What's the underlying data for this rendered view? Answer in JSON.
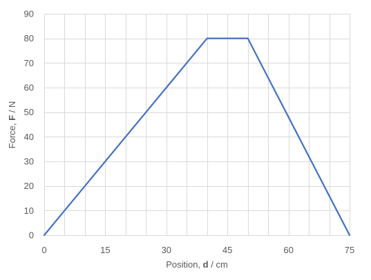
{
  "chart_data": {
    "type": "line",
    "title": "",
    "xlabel": {
      "prefix": "Position, ",
      "symbol": "d",
      "suffix": " / cm"
    },
    "ylabel": {
      "prefix": "Force, ",
      "symbol": "F",
      "suffix": " / N"
    },
    "xlim": [
      0,
      75
    ],
    "ylim": [
      0,
      90
    ],
    "x_ticks": [
      0,
      15,
      30,
      45,
      60,
      75
    ],
    "y_ticks": [
      0,
      10,
      20,
      30,
      40,
      50,
      60,
      70,
      80,
      90
    ],
    "x_minor_step": 5,
    "grid": true,
    "legend": "none",
    "series": [
      {
        "color": "#4472C4",
        "x": [
          0,
          5,
          10,
          15,
          20,
          25,
          30,
          35,
          40,
          45,
          50,
          55,
          60,
          65,
          70,
          75
        ],
        "y": [
          0,
          10,
          20,
          30,
          40,
          50,
          60,
          70,
          80,
          80,
          80,
          64,
          48,
          32,
          16,
          0
        ]
      }
    ]
  },
  "colors": {
    "grid": "#d9d9d9",
    "text": "#595959",
    "line": "#4472C4"
  }
}
